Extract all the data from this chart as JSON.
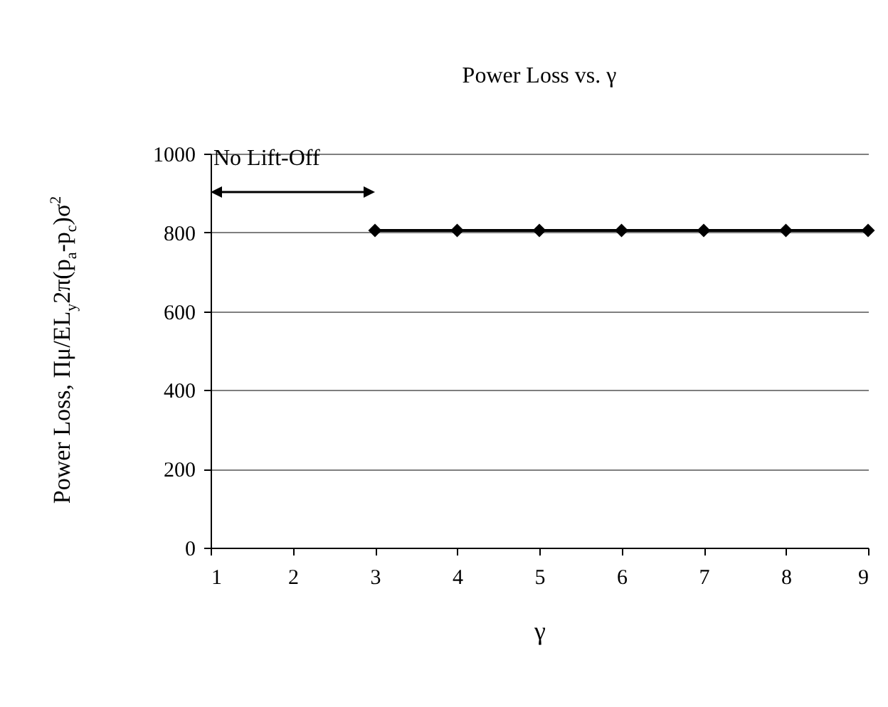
{
  "chart_data": {
    "type": "line",
    "title": "Power Loss vs. γ",
    "xlabel": "γ",
    "ylabel": "Power Loss, Πμ/EL$_{y}$2π(p$_{a}$-p$_{c}$)σ$^{2}$",
    "x": [
      3,
      4,
      5,
      6,
      7,
      8,
      9
    ],
    "series": [
      {
        "color": "#000000",
        "values": [
          805,
          805,
          805,
          805,
          805,
          805,
          805
        ]
      }
    ],
    "xlim": [
      1,
      9
    ],
    "xticks": [
      1,
      2,
      3,
      4,
      5,
      6,
      7,
      8,
      9
    ],
    "ylim": [
      0,
      1000
    ],
    "yticks": [
      0,
      200,
      400,
      600,
      800,
      1000
    ],
    "grid": "y",
    "marker": "diamond",
    "line_style": "solid",
    "annotations": [
      "No Lift-Off"
    ]
  }
}
